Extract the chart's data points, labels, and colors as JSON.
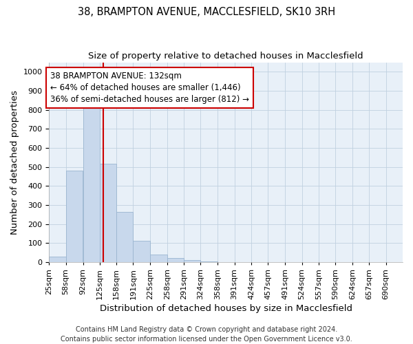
{
  "title1": "38, BRAMPTON AVENUE, MACCLESFIELD, SK10 3RH",
  "title2": "Size of property relative to detached houses in Macclesfield",
  "xlabel": "Distribution of detached houses by size in Macclesfield",
  "ylabel": "Number of detached properties",
  "footnote": "Contains HM Land Registry data © Crown copyright and database right 2024.\nContains public sector information licensed under the Open Government Licence v3.0.",
  "bins": [
    25,
    58,
    92,
    125,
    158,
    191,
    225,
    258,
    291,
    324,
    358,
    391,
    424,
    457,
    491,
    524,
    557,
    590,
    624,
    657,
    690
  ],
  "values": [
    30,
    480,
    820,
    515,
    265,
    110,
    40,
    20,
    10,
    5,
    0,
    0,
    0,
    0,
    0,
    0,
    0,
    0,
    0,
    0
  ],
  "bar_color": "#c8d8ec",
  "bar_edge_color": "#9ab5d0",
  "vline_x": 132,
  "vline_color": "#cc0000",
  "annotation_text": "38 BRAMPTON AVENUE: 132sqm\n← 64% of detached houses are smaller (1,446)\n36% of semi-detached houses are larger (812) →",
  "ylim": [
    0,
    1050
  ],
  "yticks": [
    0,
    100,
    200,
    300,
    400,
    500,
    600,
    700,
    800,
    900,
    1000
  ],
  "grid_color": "#c0d0e0",
  "background_color": "#e8f0f8",
  "tick_label_fontsize": 8,
  "axis_label_fontsize": 9.5,
  "title1_fontsize": 10.5,
  "title2_fontsize": 9.5,
  "annotation_fontsize": 8.5,
  "footnote_fontsize": 7
}
